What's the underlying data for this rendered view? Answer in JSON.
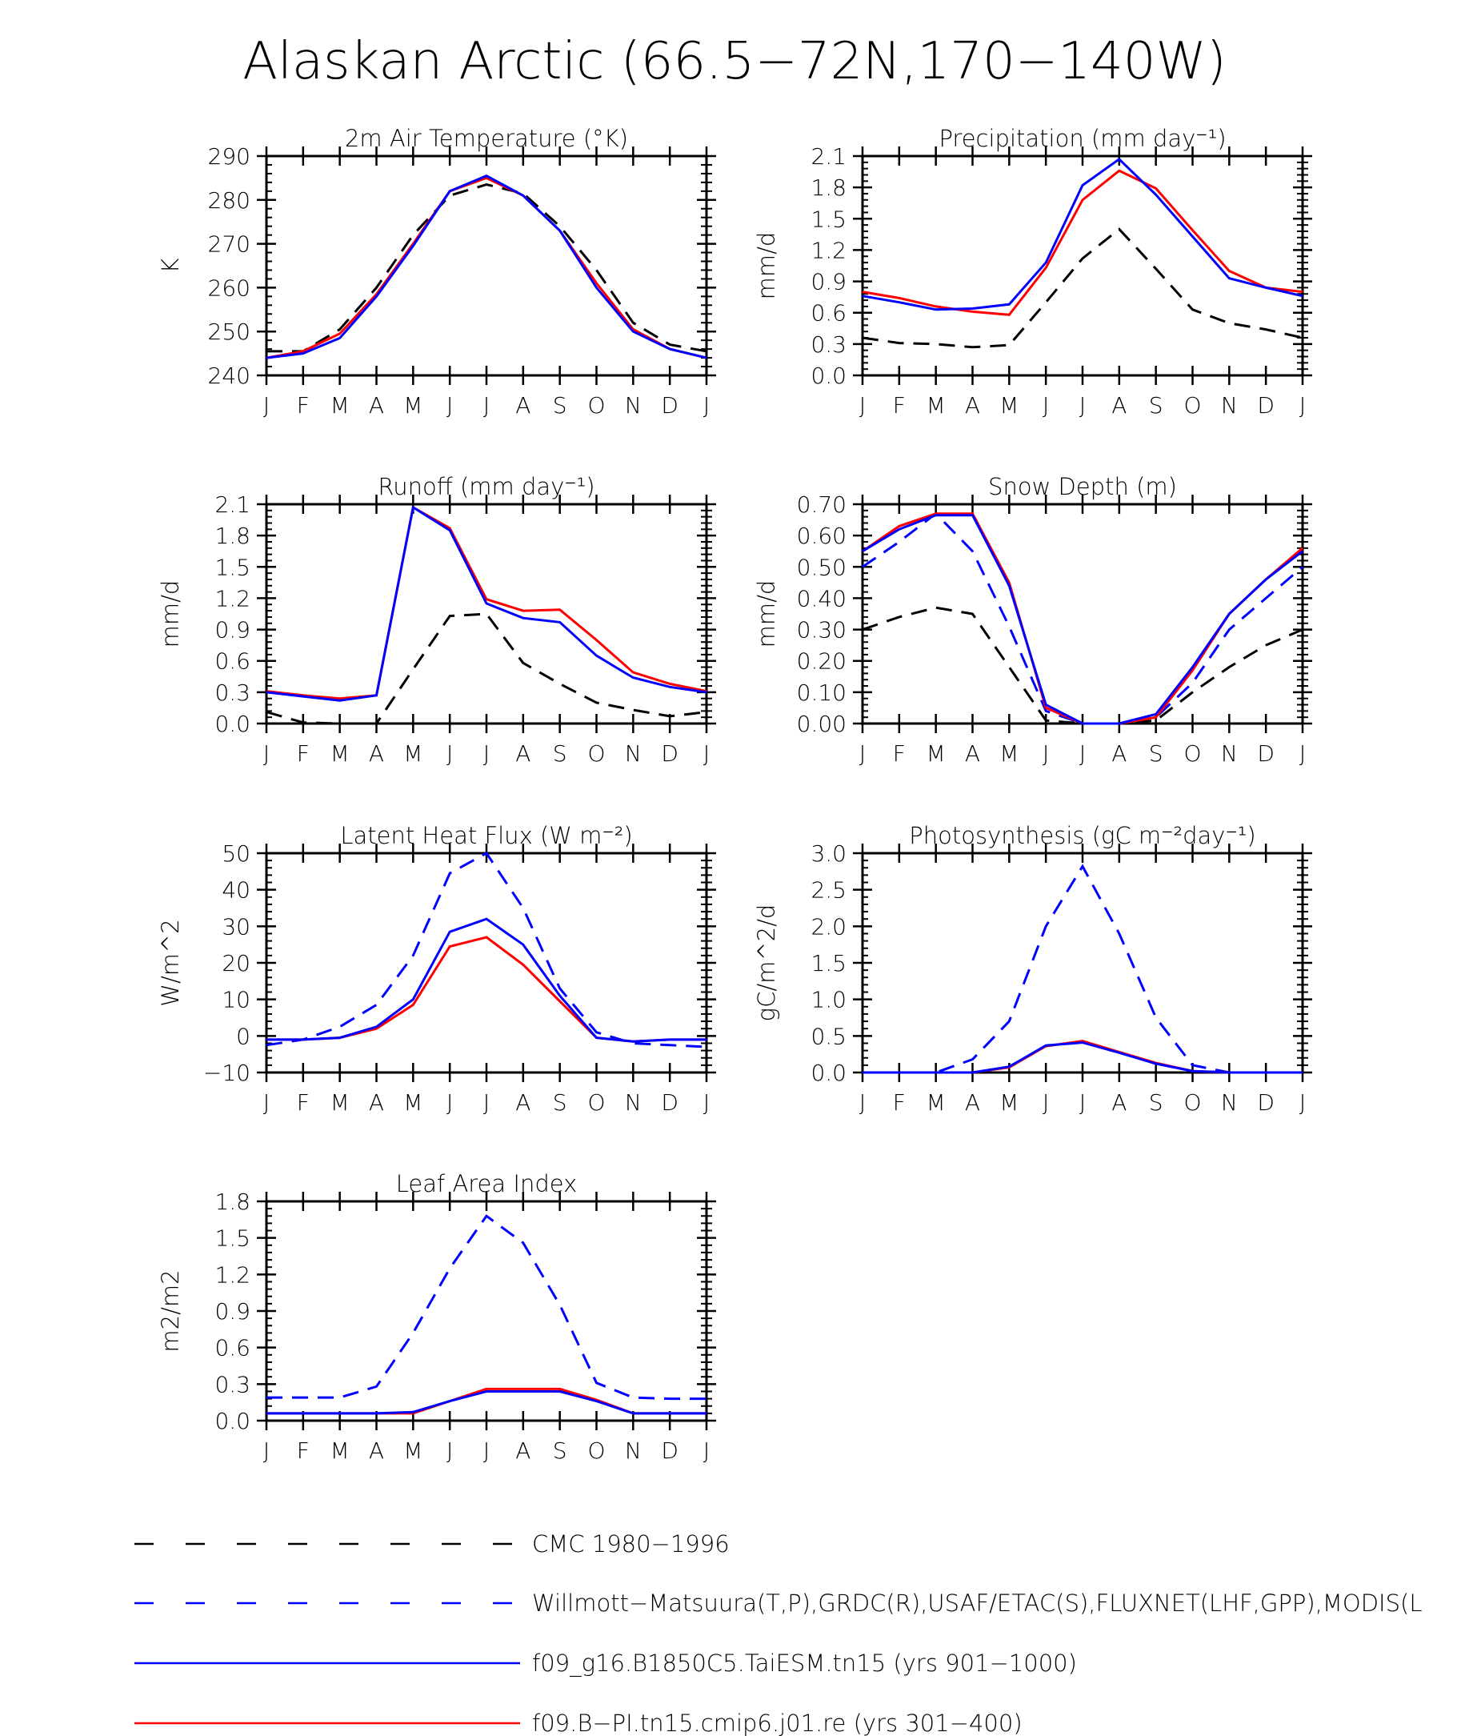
{
  "figure": {
    "title": "Alaskan Arctic (66.5−72N,170−140W)"
  },
  "months": [
    "J",
    "F",
    "M",
    "A",
    "M",
    "J",
    "J",
    "A",
    "S",
    "O",
    "N",
    "D",
    "J"
  ],
  "colors": {
    "cmc": "#000000",
    "obs": "#0000ff",
    "taiesm": "#0000ff",
    "cmip6": "#ff0000"
  },
  "legend": [
    {
      "key": "cmc",
      "label": "CMC 1980−1996",
      "color": "#000000",
      "dash": true
    },
    {
      "key": "obs",
      "label": "Willmott−Matsuura(T,P),GRDC(R),USAF/ETAC(S),FLUXNET(LHF,GPP),MODIS(L",
      "color": "#0000ff",
      "dash": true
    },
    {
      "key": "taiesm",
      "label": "f09_g16.B1850C5.TaiESM.tn15 (yrs 901−1000)",
      "color": "#0000ff",
      "dash": false
    },
    {
      "key": "cmip6",
      "label": "f09.B−PI.tn15.cmip6.j01.re (yrs 301−400)",
      "color": "#ff0000",
      "dash": false
    }
  ],
  "chart_data": [
    {
      "type": "line",
      "title": "2m Air Temperature (°K)",
      "ylabel": "K",
      "ylim": [
        240,
        290
      ],
      "yticks": [
        "240",
        "250",
        "260",
        "270",
        "280",
        "290"
      ],
      "series": [
        {
          "key": "cmc",
          "values": [
            245.5,
            245.5,
            250.5,
            260,
            272,
            281,
            283.5,
            281.5,
            274,
            264,
            252,
            247,
            245.5
          ]
        },
        {
          "key": "cmip6",
          "values": [
            244,
            245.5,
            249.5,
            258.5,
            270,
            282,
            285,
            281,
            273,
            261,
            250.5,
            246,
            244
          ]
        },
        {
          "key": "taiesm",
          "values": [
            244,
            245,
            248.5,
            258,
            269.5,
            282,
            285.5,
            281,
            273,
            260,
            250,
            246,
            244
          ]
        }
      ]
    },
    {
      "type": "line",
      "title": "Precipitation (mm day⁻¹)",
      "ylabel": "mm/d",
      "ylim": [
        0,
        2.1
      ],
      "yticks": [
        "0.0",
        "0.3",
        "0.6",
        "0.9",
        "1.2",
        "1.5",
        "1.8",
        "2.1"
      ],
      "series": [
        {
          "key": "cmc",
          "values": [
            0.36,
            0.31,
            0.3,
            0.27,
            0.29,
            0.7,
            1.12,
            1.4,
            1.02,
            0.63,
            0.5,
            0.44,
            0.36
          ]
        },
        {
          "key": "cmip6",
          "values": [
            0.8,
            0.74,
            0.66,
            0.61,
            0.58,
            1.03,
            1.68,
            1.96,
            1.79,
            1.39,
            1.0,
            0.84,
            0.8
          ]
        },
        {
          "key": "taiesm",
          "values": [
            0.76,
            0.7,
            0.63,
            0.64,
            0.68,
            1.08,
            1.82,
            2.07,
            1.73,
            1.33,
            0.93,
            0.84,
            0.76
          ]
        }
      ]
    },
    {
      "type": "line",
      "title": "Runoff (mm day⁻¹)",
      "ylabel": "mm/d",
      "ylim": [
        0,
        2.1
      ],
      "yticks": [
        "0.0",
        "0.3",
        "0.6",
        "0.9",
        "1.2",
        "1.5",
        "1.8",
        "2.1"
      ],
      "series": [
        {
          "key": "cmc",
          "values": [
            0.11,
            0.01,
            0.0,
            0.0,
            0.52,
            1.03,
            1.05,
            0.58,
            0.38,
            0.2,
            0.13,
            0.07,
            0.11
          ]
        },
        {
          "key": "cmip6",
          "values": [
            0.31,
            0.27,
            0.24,
            0.27,
            2.07,
            1.87,
            1.19,
            1.08,
            1.09,
            0.8,
            0.49,
            0.38,
            0.31
          ]
        },
        {
          "key": "taiesm",
          "values": [
            0.3,
            0.26,
            0.22,
            0.27,
            2.07,
            1.85,
            1.15,
            1.01,
            0.97,
            0.65,
            0.44,
            0.35,
            0.3
          ]
        }
      ]
    },
    {
      "type": "line",
      "title": "Snow Depth (m)",
      "ylabel": "mm/d",
      "ylim": [
        0,
        0.7
      ],
      "yticks": [
        "0.00",
        "0.10",
        "0.20",
        "0.30",
        "0.40",
        "0.50",
        "0.60",
        "0.70"
      ],
      "series": [
        {
          "key": "cmc",
          "values": [
            0.3,
            0.34,
            0.37,
            0.35,
            0.18,
            0.01,
            0.0,
            0.0,
            0.01,
            0.1,
            0.18,
            0.25,
            0.3
          ]
        },
        {
          "key": "obs",
          "values": [
            0.5,
            0.58,
            0.67,
            0.55,
            0.31,
            0.04,
            0.0,
            0.0,
            0.02,
            0.13,
            0.3,
            0.4,
            0.5
          ]
        },
        {
          "key": "cmip6",
          "values": [
            0.55,
            0.63,
            0.67,
            0.67,
            0.45,
            0.05,
            0.0,
            0.0,
            0.02,
            0.17,
            0.35,
            0.46,
            0.56
          ]
        },
        {
          "key": "taiesm",
          "values": [
            0.55,
            0.62,
            0.665,
            0.665,
            0.44,
            0.06,
            0.0,
            0.0,
            0.03,
            0.18,
            0.35,
            0.46,
            0.55
          ]
        }
      ]
    },
    {
      "type": "line",
      "title": "Latent Heat Flux (W m⁻²)",
      "ylabel": "W/m^2",
      "ylim": [
        -10,
        50
      ],
      "yticks": [
        "−10",
        "0",
        "10",
        "20",
        "30",
        "40",
        "50"
      ],
      "series": [
        {
          "key": "obs",
          "values": [
            -2.5,
            -1,
            2.5,
            8.5,
            22,
            44.5,
            50,
            35,
            13,
            1,
            -2,
            -2.5,
            -3
          ]
        },
        {
          "key": "cmip6",
          "values": [
            -1,
            -1,
            -0.5,
            2,
            8.5,
            24.5,
            27,
            19.5,
            9.5,
            -0.5,
            -1.5,
            -1,
            -1
          ]
        },
        {
          "key": "taiesm",
          "values": [
            -1,
            -1,
            -0.5,
            2.5,
            10,
            28.5,
            32,
            25,
            11,
            -0.5,
            -1.5,
            -1,
            -1
          ]
        }
      ]
    },
    {
      "type": "line",
      "title": "Photosynthesis (gC m⁻²day⁻¹)",
      "ylabel": "gC/m^2/d",
      "ylim": [
        0,
        3.0
      ],
      "yticks": [
        "0.0",
        "0.5",
        "1.0",
        "1.5",
        "2.0",
        "2.5",
        "3.0"
      ],
      "series": [
        {
          "key": "obs",
          "values": [
            0,
            0,
            0,
            0.18,
            0.7,
            2.0,
            2.82,
            1.9,
            0.75,
            0.1,
            0,
            0,
            0
          ]
        },
        {
          "key": "cmip6",
          "values": [
            0,
            0,
            0,
            0,
            0.07,
            0.36,
            0.43,
            0.28,
            0.13,
            0.02,
            0,
            0,
            0
          ]
        },
        {
          "key": "taiesm",
          "values": [
            0,
            0,
            0,
            0,
            0.08,
            0.37,
            0.41,
            0.27,
            0.12,
            0.02,
            0,
            0,
            0
          ]
        }
      ]
    },
    {
      "type": "line",
      "title": "Leaf Area Index",
      "ylabel": "m2/m2",
      "ylim": [
        0,
        1.8
      ],
      "yticks": [
        "0.0",
        "0.3",
        "0.6",
        "0.9",
        "1.2",
        "1.5",
        "1.8"
      ],
      "series": [
        {
          "key": "obs",
          "values": [
            0.19,
            0.19,
            0.19,
            0.28,
            0.72,
            1.25,
            1.68,
            1.46,
            0.95,
            0.31,
            0.19,
            0.18,
            0.18
          ]
        },
        {
          "key": "cmip6",
          "values": [
            0.06,
            0.06,
            0.06,
            0.06,
            0.06,
            0.16,
            0.26,
            0.26,
            0.26,
            0.17,
            0.06,
            0.06,
            0.06
          ]
        },
        {
          "key": "taiesm",
          "values": [
            0.06,
            0.06,
            0.06,
            0.06,
            0.07,
            0.16,
            0.24,
            0.24,
            0.24,
            0.16,
            0.06,
            0.06,
            0.06
          ]
        }
      ]
    }
  ]
}
